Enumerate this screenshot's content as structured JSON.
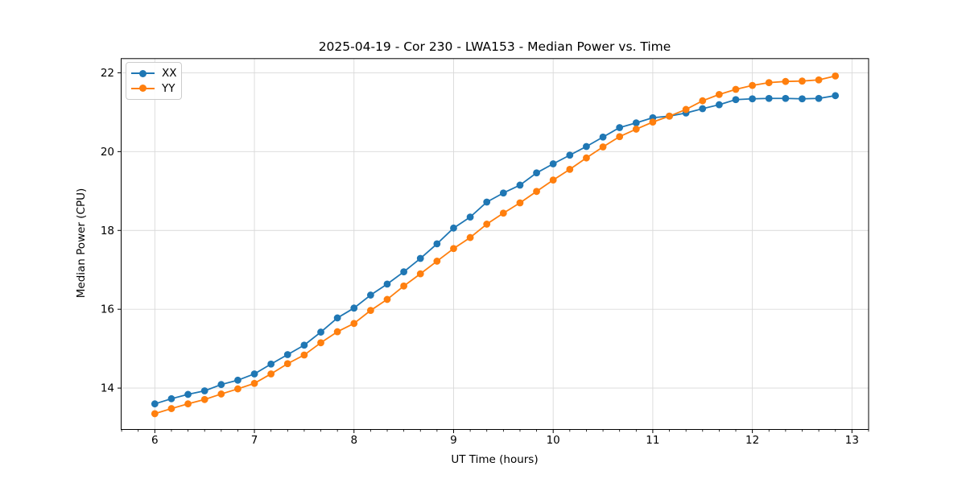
{
  "chart_data": {
    "type": "line",
    "title": "2025-04-19 - Cor 230 - LWA153 - Median Power vs. Time",
    "xlabel": "UT Time (hours)",
    "ylabel": "Median Power (CPU)",
    "x": [
      6.0,
      6.1667,
      6.3333,
      6.5,
      6.6667,
      6.8333,
      7.0,
      7.1667,
      7.3333,
      7.5,
      7.6667,
      7.8333,
      8.0,
      8.1667,
      8.3333,
      8.5,
      8.6667,
      8.8333,
      9.0,
      9.1667,
      9.3333,
      9.5,
      9.6667,
      9.8333,
      10.0,
      10.1667,
      10.3333,
      10.5,
      10.6667,
      10.8333,
      11.0,
      11.1667,
      11.3333,
      11.5,
      11.6667,
      11.8333,
      12.0,
      12.1667,
      12.3333,
      12.5,
      12.6667,
      12.8333
    ],
    "series": [
      {
        "name": "XX",
        "color": "#1f77b4",
        "marker": "circle",
        "values": [
          13.6,
          13.73,
          13.84,
          13.93,
          14.09,
          14.2,
          14.36,
          14.61,
          14.85,
          15.09,
          15.42,
          15.78,
          16.03,
          16.36,
          16.64,
          16.95,
          17.29,
          17.66,
          18.06,
          18.34,
          18.72,
          18.95,
          19.15,
          19.46,
          19.69,
          19.91,
          20.13,
          20.37,
          20.61,
          20.73,
          20.86,
          20.9,
          20.98,
          21.09,
          21.19,
          21.32,
          21.34,
          21.35,
          21.35,
          21.34,
          21.35,
          21.42
        ]
      },
      {
        "name": "YY",
        "color": "#ff7f0e",
        "marker": "circle",
        "values": [
          13.35,
          13.48,
          13.6,
          13.71,
          13.85,
          13.98,
          14.12,
          14.36,
          14.62,
          14.84,
          15.15,
          15.43,
          15.64,
          15.97,
          16.25,
          16.59,
          16.9,
          17.22,
          17.54,
          17.82,
          18.16,
          18.44,
          18.7,
          18.99,
          19.28,
          19.55,
          19.84,
          20.12,
          20.38,
          20.57,
          20.75,
          20.9,
          21.07,
          21.29,
          21.45,
          21.58,
          21.68,
          21.75,
          21.78,
          21.79,
          21.82,
          21.92
        ]
      }
    ],
    "xlim": [
      5.662,
      13.167
    ],
    "ylim": [
      12.95,
      22.36
    ],
    "xticks": [
      6,
      7,
      8,
      9,
      10,
      11,
      12,
      13
    ],
    "yticks": [
      14,
      16,
      18,
      20,
      22
    ],
    "x_minor_tick_step": 0.16667,
    "grid": true,
    "grid_color": "#d9d9d9",
    "axis_color": "#000000",
    "background": "#ffffff",
    "legend_position": "upper left"
  }
}
